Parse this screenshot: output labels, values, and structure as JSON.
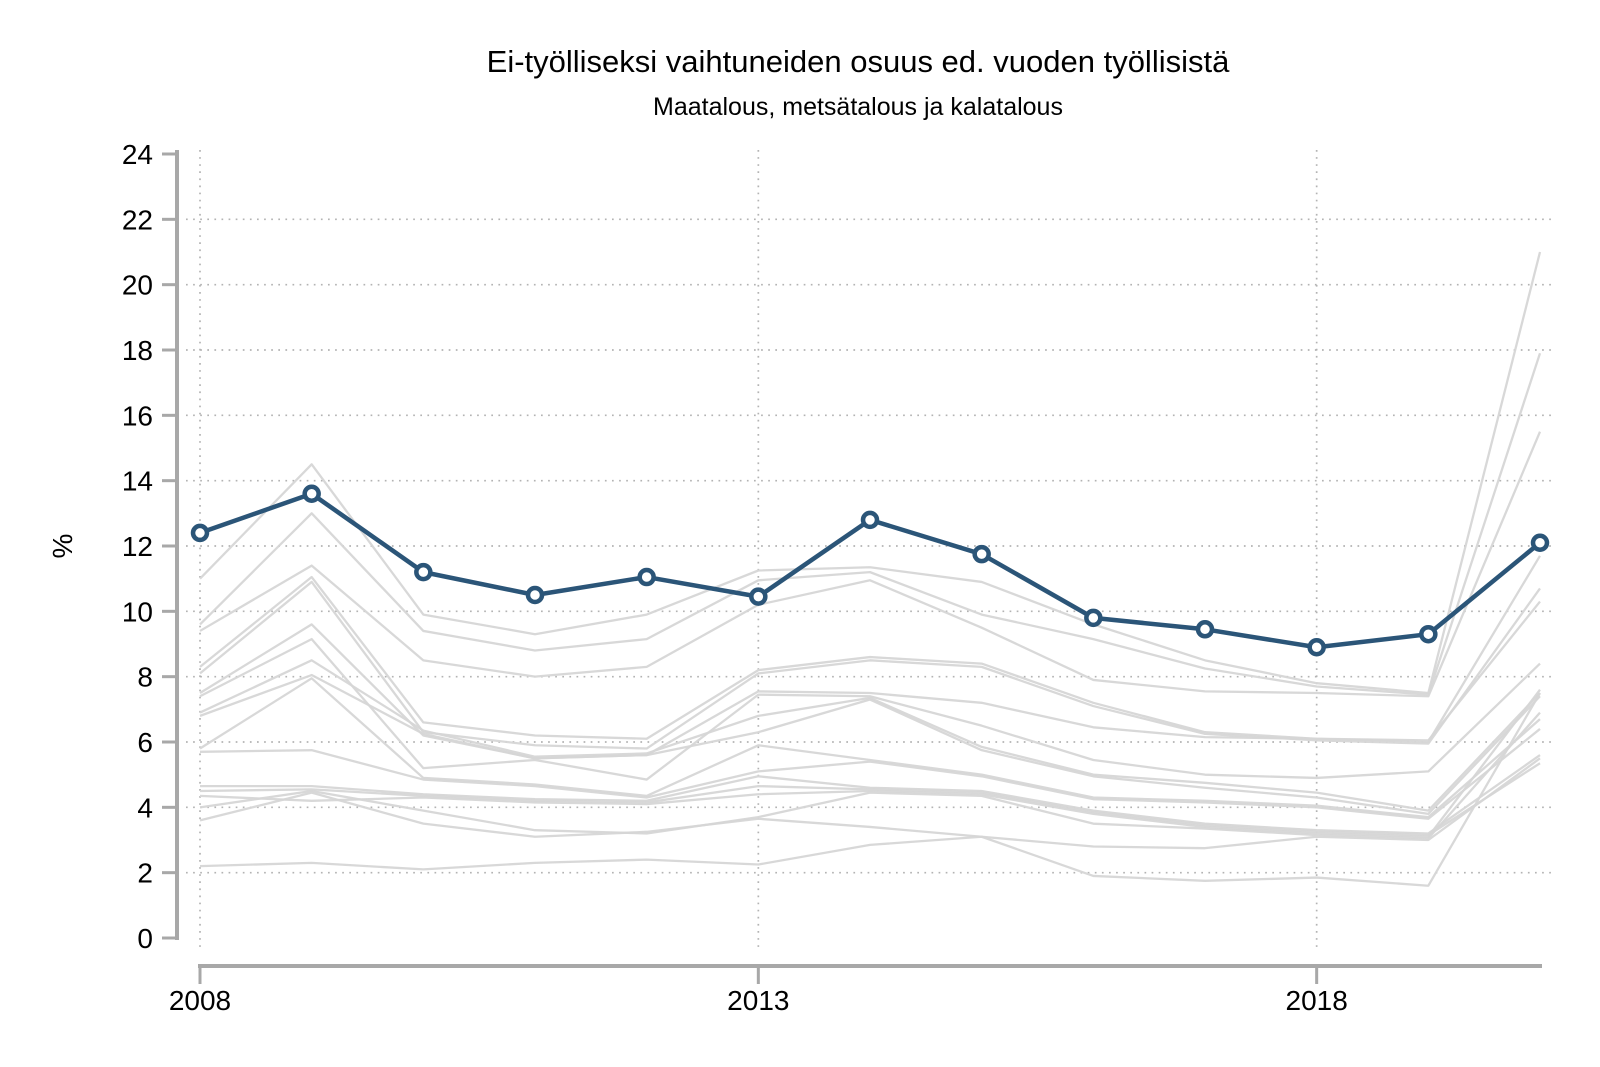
{
  "title": "Ei-työlliseksi vaihtuneiden osuus ed. vuoden työllisistä",
  "subtitle": "Maatalous, metsätalous ja kalatalous",
  "colors": {
    "highlight_line": "#2b5578",
    "marker_fill": "#ffffff",
    "background_lines": "#d6d6d6",
    "axis": "#a8a8a8",
    "grid": "#b3b3b3",
    "text": "#000000"
  },
  "chart_data": {
    "type": "line",
    "title": "Ei-työlliseksi vaihtuneiden osuus ed. vuoden työllisistä",
    "subtitle": "Maatalous, metsätalous ja kalatalous",
    "xlabel": "",
    "ylabel": "%",
    "x": [
      2008,
      2009,
      2010,
      2011,
      2012,
      2013,
      2014,
      2015,
      2016,
      2017,
      2018,
      2019,
      2020
    ],
    "xtick_labels": [
      2008,
      2013,
      2018
    ],
    "ylim": [
      0,
      24
    ],
    "yticks": [
      0,
      2,
      4,
      6,
      8,
      10,
      12,
      14,
      16,
      18,
      20,
      22,
      24
    ],
    "grid": {
      "style": "dotted",
      "y_values": [
        2,
        4,
        6,
        8,
        10,
        12,
        14,
        16,
        18,
        20,
        22
      ],
      "x_values": [
        2008,
        2013,
        2018
      ]
    },
    "legend": "none",
    "highlight_series": {
      "name": "Maatalous, metsätalous ja kalatalous",
      "marker": "open-circle",
      "values": [
        12.4,
        13.6,
        11.2,
        10.5,
        11.05,
        10.45,
        12.8,
        11.75,
        9.8,
        9.45,
        8.9,
        9.3,
        12.1
      ]
    },
    "background_series": [
      {
        "values": [
          11.0,
          14.5,
          9.9,
          9.3,
          9.9,
          11.25,
          11.35,
          10.9,
          9.6,
          8.5,
          7.8,
          7.5,
          21.0
        ]
      },
      {
        "values": [
          9.6,
          13.0,
          9.4,
          8.8,
          9.15,
          10.95,
          11.2,
          9.9,
          9.15,
          8.25,
          7.7,
          7.45,
          17.9
        ]
      },
      {
        "values": [
          9.4,
          11.4,
          8.5,
          8.0,
          8.3,
          10.2,
          10.95,
          9.5,
          7.9,
          7.55,
          7.5,
          7.4,
          15.5
        ]
      },
      {
        "values": [
          8.3,
          11.05,
          6.6,
          6.2,
          6.1,
          8.2,
          8.6,
          8.4,
          7.2,
          6.3,
          6.1,
          6.0,
          11.7
        ]
      },
      {
        "values": [
          8.1,
          10.9,
          6.3,
          5.9,
          5.8,
          8.1,
          8.5,
          8.3,
          7.1,
          6.25,
          6.05,
          5.95,
          10.7
        ]
      },
      {
        "values": [
          7.5,
          9.6,
          6.2,
          5.5,
          5.6,
          7.55,
          7.5,
          7.2,
          6.45,
          6.15,
          6.1,
          6.05,
          10.3
        ]
      },
      {
        "values": [
          7.4,
          9.15,
          5.2,
          5.45,
          4.85,
          7.45,
          7.4,
          6.5,
          5.45,
          5.0,
          4.9,
          5.1,
          8.4
        ]
      },
      {
        "values": [
          6.9,
          8.5,
          6.35,
          5.55,
          5.65,
          6.8,
          7.35,
          5.85,
          5.0,
          4.75,
          4.45,
          3.9,
          7.5
        ]
      },
      {
        "values": [
          6.8,
          8.05,
          6.25,
          5.5,
          5.6,
          6.3,
          7.3,
          5.75,
          4.95,
          4.6,
          4.3,
          3.8,
          7.4
        ]
      },
      {
        "values": [
          5.8,
          7.95,
          4.9,
          4.7,
          4.35,
          5.9,
          5.45,
          5.0,
          4.3,
          4.2,
          4.05,
          3.7,
          6.7
        ]
      },
      {
        "values": [
          5.7,
          5.75,
          4.85,
          4.65,
          4.3,
          5.1,
          5.4,
          4.95,
          4.25,
          4.15,
          4.0,
          3.65,
          6.4
        ]
      },
      {
        "values": [
          4.65,
          4.65,
          4.4,
          4.25,
          4.2,
          4.95,
          4.6,
          4.5,
          3.9,
          3.5,
          3.3,
          3.2,
          5.6
        ]
      },
      {
        "values": [
          4.5,
          4.55,
          4.35,
          4.2,
          4.15,
          4.65,
          4.55,
          4.45,
          3.85,
          3.45,
          3.25,
          3.15,
          5.35
        ]
      },
      {
        "values": [
          4.35,
          4.2,
          4.3,
          4.15,
          4.1,
          4.4,
          4.5,
          4.4,
          3.8,
          3.4,
          3.2,
          3.1,
          7.6
        ]
      },
      {
        "values": [
          4.0,
          4.5,
          3.9,
          3.3,
          3.2,
          3.7,
          4.45,
          4.35,
          3.5,
          3.35,
          3.15,
          3.05,
          6.9
        ]
      },
      {
        "values": [
          3.6,
          4.45,
          3.5,
          3.1,
          3.25,
          3.65,
          3.4,
          3.1,
          2.8,
          2.75,
          3.1,
          3.0,
          5.5
        ]
      },
      {
        "values": [
          2.2,
          2.3,
          2.1,
          2.3,
          2.4,
          2.25,
          2.85,
          3.1,
          1.9,
          1.75,
          1.85,
          1.6,
          7.5
        ]
      }
    ]
  }
}
